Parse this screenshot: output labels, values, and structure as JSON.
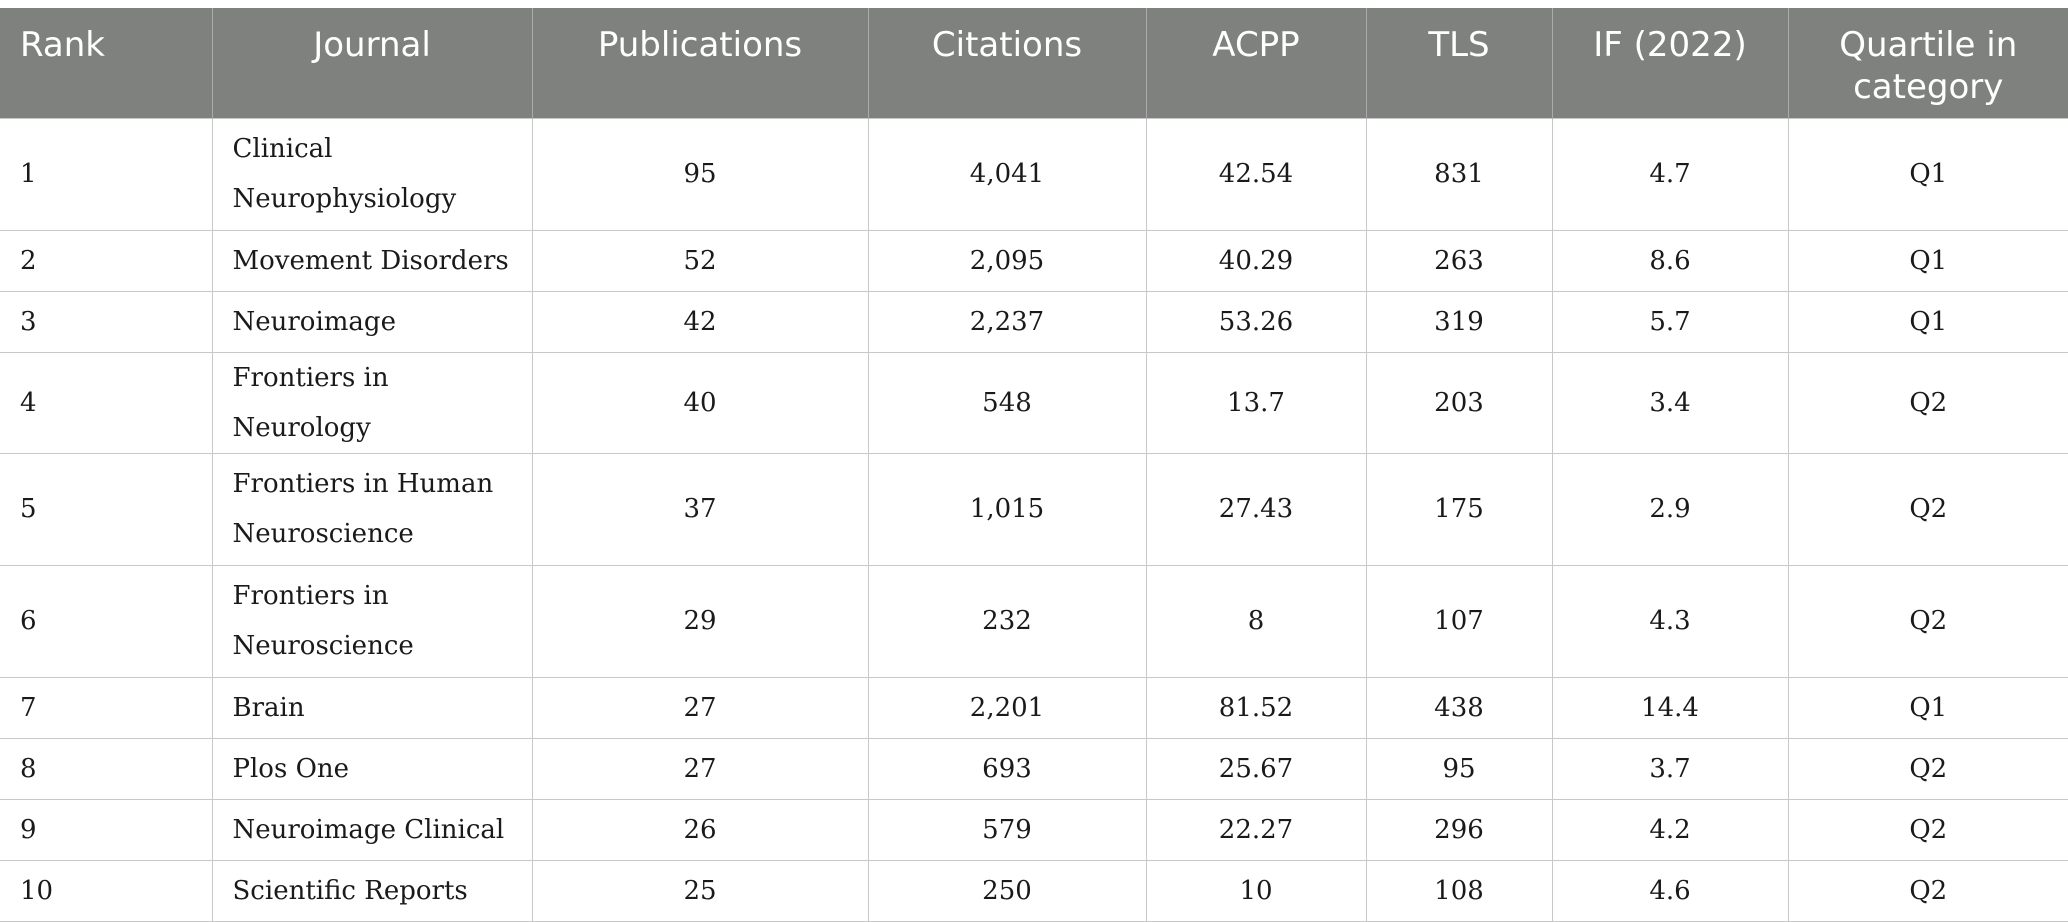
{
  "headers": [
    "Rank",
    "Journal",
    "Publications",
    "Citations",
    "ACPP",
    "TLS",
    "IF (2022)",
    "Quartile in category"
  ],
  "rows": [
    {
      "rank": "1",
      "journal": "Clinical Neurophysiology",
      "publications": "95",
      "citations": "4,041",
      "acpp": "42.54",
      "tls": "831",
      "if": "4.7",
      "quartile": "Q1"
    },
    {
      "rank": "2",
      "journal": "Movement Disorders",
      "publications": "52",
      "citations": "2,095",
      "acpp": "40.29",
      "tls": "263",
      "if": "8.6",
      "quartile": "Q1"
    },
    {
      "rank": "3",
      "journal": "Neuroimage",
      "publications": "42",
      "citations": "2,237",
      "acpp": "53.26",
      "tls": "319",
      "if": "5.7",
      "quartile": "Q1"
    },
    {
      "rank": "4",
      "journal": "Frontiers in Neurology",
      "publications": "40",
      "citations": "548",
      "acpp": "13.7",
      "tls": "203",
      "if": "3.4",
      "quartile": "Q2"
    },
    {
      "rank": "5",
      "journal": "Frontiers in Human Neuroscience",
      "publications": "37",
      "citations": "1,015",
      "acpp": "27.43",
      "tls": "175",
      "if": "2.9",
      "quartile": "Q2"
    },
    {
      "rank": "6",
      "journal": "Frontiers in Neuroscience",
      "publications": "29",
      "citations": "232",
      "acpp": "8",
      "tls": "107",
      "if": "4.3",
      "quartile": "Q2"
    },
    {
      "rank": "7",
      "journal": "Brain",
      "publications": "27",
      "citations": "2,201",
      "acpp": "81.52",
      "tls": "438",
      "if": "14.4",
      "quartile": "Q1"
    },
    {
      "rank": "8",
      "journal": "Plos One",
      "publications": "27",
      "citations": "693",
      "acpp": "25.67",
      "tls": "95",
      "if": "3.7",
      "quartile": "Q2"
    },
    {
      "rank": "9",
      "journal": "Neuroimage Clinical",
      "publications": "26",
      "citations": "579",
      "acpp": "22.27",
      "tls": "296",
      "if": "4.2",
      "quartile": "Q2"
    },
    {
      "rank": "10",
      "journal": "Scientific Reports",
      "publications": "25",
      "citations": "250",
      "acpp": "10",
      "tls": "108",
      "if": "4.6",
      "quartile": "Q2"
    }
  ],
  "colors": {
    "header_background": "#7f817f",
    "header_text": "#ffffff",
    "grid_line": "#c8c8c8"
  }
}
